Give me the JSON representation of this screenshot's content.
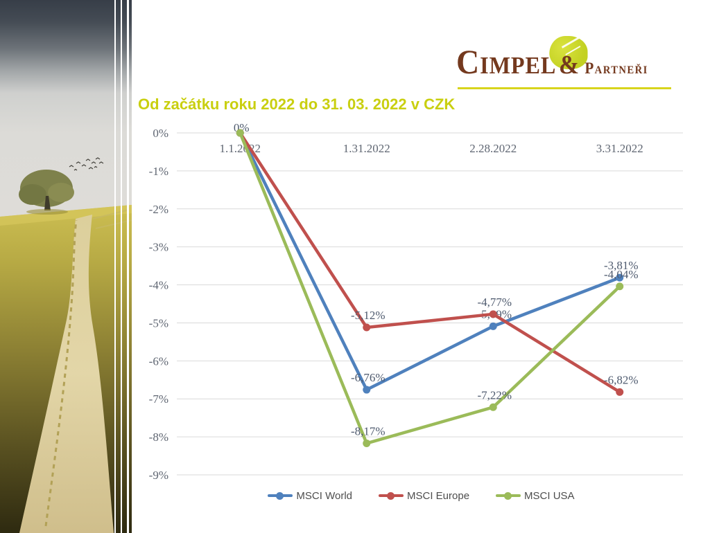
{
  "slide": {
    "title": "Od začátku roku 2022 do 31. 03. 2022 v CZK",
    "title_color": "#c9cf10",
    "background_color": "#ffffff"
  },
  "logo": {
    "name_main": "Cimpel",
    "ampersand": "&",
    "name_secondary": "Partneři",
    "text_color": "#74391e",
    "tree_color": "#c3d122",
    "underline_color": "#d8d41c"
  },
  "chart_data": {
    "type": "line",
    "title": "Od začátku roku 2022 do 31. 03. 2022 v CZK",
    "categories": [
      "1.1.2022",
      "1.31.2022",
      "2.28.2022",
      "3.31.2022"
    ],
    "series": [
      {
        "name": "MSCI World",
        "color": "#4F81BD",
        "values": [
          0,
          -6.76,
          -5.09,
          -3.81
        ],
        "labels": [
          "0%",
          "-6,76%",
          "-5,09%",
          "-3,81%"
        ],
        "label_offsets": [
          10,
          0,
          0,
          0
        ]
      },
      {
        "name": "MSCI Europe",
        "color": "#C0504D",
        "values": [
          0,
          -5.12,
          -4.77,
          -6.82
        ],
        "labels": [
          null,
          "-5,12%",
          "-4,77%",
          "-6,82%"
        ],
        "label_offsets": [
          0,
          0,
          0,
          0
        ]
      },
      {
        "name": "MSCI USA",
        "color": "#9BBB59",
        "values": [
          0,
          -8.17,
          -7.22,
          -4.04
        ],
        "labels": [
          null,
          "-8,17%",
          "-7,22%",
          "-4,04%"
        ],
        "label_offsets": [
          0,
          0,
          0,
          0
        ]
      }
    ],
    "y_axis": {
      "ticks": [
        "0%",
        "-1%",
        "-2%",
        "-3%",
        "-4%",
        "-5%",
        "-6%",
        "-7%",
        "-8%",
        "-9%"
      ],
      "tick_values": [
        0,
        -1,
        -2,
        -3,
        -4,
        -5,
        -6,
        -7,
        -8,
        -9
      ],
      "min": -9,
      "max": 0
    },
    "grid": true,
    "legend_position": "bottom",
    "colors": {
      "gridline": "#d9d9d9",
      "axis_text": "#5f6672",
      "data_label_text": "#4e5a6e"
    }
  }
}
